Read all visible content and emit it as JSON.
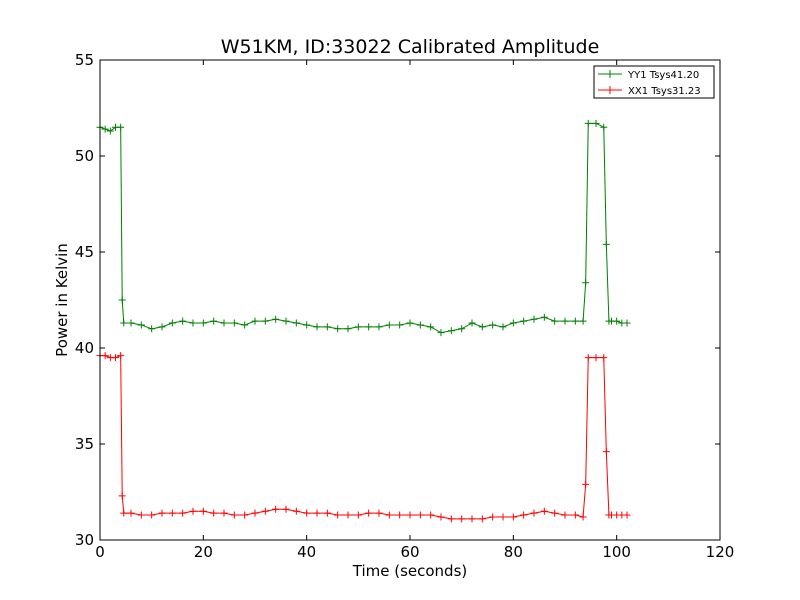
{
  "chart_data": {
    "type": "line",
    "title": "W51KM, ID:33022 Calibrated Amplitude",
    "xlabel": "Time (seconds)",
    "ylabel": "Power in Kelvin",
    "xlim": [
      0,
      120
    ],
    "ylim": [
      30,
      55
    ],
    "xticks": [
      0,
      20,
      40,
      60,
      80,
      100,
      120
    ],
    "yticks": [
      30,
      35,
      40,
      45,
      50,
      55
    ],
    "legend_position": "top-right",
    "grid": false,
    "series": [
      {
        "name": "YY1 Tsys41.20",
        "color": "#008000",
        "marker": "+",
        "x": [
          0,
          1,
          2,
          3,
          4,
          4.3,
          4.6,
          6,
          8,
          10,
          12,
          14,
          16,
          18,
          20,
          22,
          24,
          26,
          28,
          30,
          32,
          34,
          36,
          38,
          40,
          42,
          44,
          46,
          48,
          50,
          52,
          54,
          56,
          58,
          60,
          62,
          64,
          66,
          68,
          70,
          72,
          74,
          76,
          78,
          80,
          82,
          84,
          86,
          88,
          90,
          92,
          93.5,
          94,
          94.5,
          96,
          97.5,
          98,
          98.5,
          99,
          100,
          101,
          102
        ],
        "y": [
          51.5,
          51.4,
          51.3,
          51.5,
          51.5,
          42.5,
          41.3,
          41.3,
          41.2,
          41.0,
          41.1,
          41.3,
          41.4,
          41.3,
          41.3,
          41.4,
          41.3,
          41.3,
          41.2,
          41.4,
          41.4,
          41.5,
          41.4,
          41.3,
          41.2,
          41.1,
          41.1,
          41.0,
          41.0,
          41.1,
          41.1,
          41.1,
          41.2,
          41.2,
          41.3,
          41.2,
          41.1,
          40.8,
          40.9,
          41.0,
          41.3,
          41.1,
          41.2,
          41.1,
          41.3,
          41.4,
          41.5,
          41.6,
          41.4,
          41.4,
          41.4,
          41.4,
          43.4,
          51.7,
          51.7,
          51.5,
          45.4,
          41.4,
          41.4,
          41.4,
          41.3,
          41.3
        ]
      },
      {
        "name": "XX1 Tsys31.23",
        "color": "#ff0000",
        "marker": "+",
        "x": [
          0,
          1,
          2,
          3,
          4,
          4.3,
          4.6,
          6,
          8,
          10,
          12,
          14,
          16,
          18,
          20,
          22,
          24,
          26,
          28,
          30,
          32,
          34,
          36,
          38,
          40,
          42,
          44,
          46,
          48,
          50,
          52,
          54,
          56,
          58,
          60,
          62,
          64,
          66,
          68,
          70,
          72,
          74,
          76,
          78,
          80,
          82,
          84,
          86,
          88,
          90,
          92,
          93.5,
          94,
          94.5,
          96,
          97.5,
          98,
          98.5,
          99,
          100,
          101,
          102
        ],
        "y": [
          39.6,
          39.6,
          39.5,
          39.5,
          39.6,
          32.3,
          31.4,
          31.4,
          31.3,
          31.3,
          31.4,
          31.4,
          31.4,
          31.5,
          31.5,
          31.4,
          31.4,
          31.3,
          31.3,
          31.4,
          31.5,
          31.6,
          31.6,
          31.5,
          31.4,
          31.4,
          31.4,
          31.3,
          31.3,
          31.3,
          31.4,
          31.4,
          31.3,
          31.3,
          31.3,
          31.3,
          31.3,
          31.2,
          31.1,
          31.1,
          31.1,
          31.1,
          31.2,
          31.2,
          31.2,
          31.3,
          31.4,
          31.5,
          31.4,
          31.3,
          31.3,
          31.2,
          32.9,
          39.5,
          39.5,
          39.5,
          34.6,
          31.3,
          31.3,
          31.3,
          31.3,
          31.3
        ]
      }
    ]
  }
}
